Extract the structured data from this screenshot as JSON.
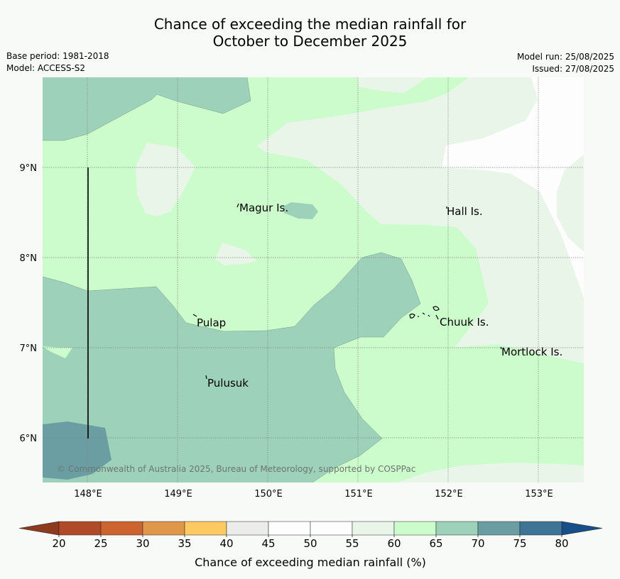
{
  "title": {
    "line1": "Chance of exceeding the median rainfall for",
    "line2": "October to December 2025"
  },
  "meta": {
    "base_period": "Base period: 1981-2018",
    "model": "Model: ACCESS-S2",
    "model_run": "Model run: 25/08/2025",
    "issued": "Issued: 27/08/2025"
  },
  "map": {
    "lat_labels": [
      "9°N",
      "8°N",
      "7°N",
      "6°N"
    ],
    "lon_labels": [
      "148°E",
      "149°E",
      "150°E",
      "151°E",
      "152°E",
      "153°E"
    ],
    "places": [
      "Magur Is.",
      "Hall Is.",
      "Pulap",
      "Chuuk Is.",
      "Mortlock Is.",
      "Pulusuk"
    ],
    "copyright": "© Commonwealth of Australia 2025, Bureau of Meteorology, supported by COSPPac",
    "colors": {
      "c65_70": "#9dd1b9",
      "c60_65": "#ccfccc",
      "c55_60": "#eaf5ea",
      "c50_55": "#fdfdfd",
      "c70_75": "#6b9ea3",
      "frame": "#f8faf7"
    }
  },
  "colorbar": {
    "label": "Chance of exceeding median rainfall (%)",
    "ticks": [
      "20",
      "25",
      "30",
      "35",
      "40",
      "45",
      "50",
      "55",
      "60",
      "65",
      "70",
      "75",
      "80"
    ],
    "colors": [
      "#b04a28",
      "#cd6430",
      "#e0974a",
      "#fdca62",
      "#ececea",
      "#fdfdfd",
      "#fdfdfd",
      "#eaf5ea",
      "#ccfccc",
      "#9dd1b9",
      "#6b9ea3",
      "#3e7596"
    ],
    "under_color": "#8e3a20",
    "over_color": "#16508b"
  }
}
